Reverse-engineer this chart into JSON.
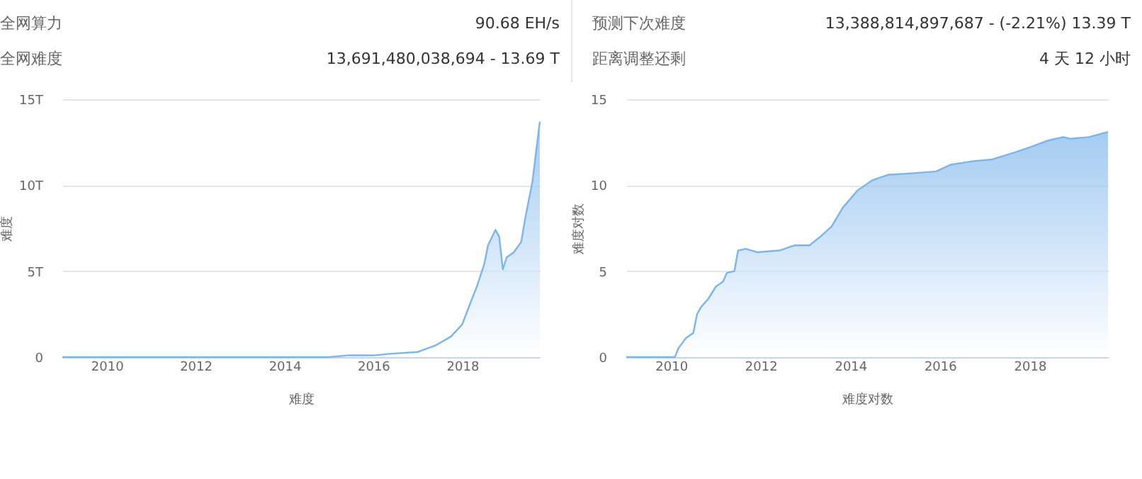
{
  "chart_data": [
    {
      "type": "area",
      "xlabel": "难度",
      "ylabel": "难度",
      "annotations": [
        "全网算力",
        "90.68 EH/s",
        "全网难度",
        "13,691,480,038,694 - 13.69 T"
      ],
      "x": [
        "2009-01",
        "2010-01",
        "2011-01",
        "2012-01",
        "2013-01",
        "2014-01",
        "2015-01",
        "2015-06",
        "2016-01",
        "2016-06",
        "2017-01",
        "2017-06",
        "2017-10",
        "2018-01",
        "2018-03",
        "2018-05",
        "2018-07",
        "2018-08",
        "2018-10",
        "2018-11",
        "2018-12",
        "2019-01",
        "2019-03",
        "2019-05",
        "2019-06",
        "2019-07",
        "2019-08",
        "2019-09",
        "2019-10"
      ],
      "series": [
        {
          "color": "#7cb5ec",
          "values": [
            0,
            0,
            0,
            0,
            0,
            0,
            0,
            0.1,
            0.1,
            0.2,
            0.3,
            0.7,
            1.2,
            1.9,
            3.0,
            4.1,
            5.4,
            6.5,
            7.4,
            7.0,
            5.1,
            5.8,
            6.1,
            6.7,
            8.0,
            9.1,
            10.2,
            12.0,
            13.7
          ]
        }
      ],
      "xlim": [
        "2009-01",
        "2019-10"
      ],
      "xticks": [
        "2010",
        "2012",
        "2014",
        "2016",
        "2018"
      ],
      "ylim": [
        0,
        15
      ],
      "yticks": [
        0,
        {
          "value": 5,
          "label": "5T"
        },
        {
          "value": 10,
          "label": "10T"
        },
        {
          "value": 15,
          "label": "15T"
        }
      ],
      "grid": "y"
    },
    {
      "type": "area",
      "xlabel": "难度对数",
      "ylabel": "难度对数",
      "annotations": [
        "预测下次难度",
        "13,388,814,897,687 - (-2.21%) 13.39 T",
        "距离调整还剩",
        "4 天 12 小时"
      ],
      "x": [
        "2009-01",
        "2010-02",
        "2010-03",
        "2010-05",
        "2010-07",
        "2010-08",
        "2010-09",
        "2010-11",
        "2011-01",
        "2011-03",
        "2011-04",
        "2011-06",
        "2011-07",
        "2011-09",
        "2011-12",
        "2012-06",
        "2012-10",
        "2013-02",
        "2013-05",
        "2013-08",
        "2013-11",
        "2014-03",
        "2014-07",
        "2014-11",
        "2015-06",
        "2015-12",
        "2016-04",
        "2016-10",
        "2017-03",
        "2017-09",
        "2018-01",
        "2018-06",
        "2018-10",
        "2018-12",
        "2019-05",
        "2019-10"
      ],
      "series": [
        {
          "color": "#7cb5ec",
          "values": [
            0,
            0,
            0.5,
            1.1,
            1.4,
            2.5,
            2.9,
            3.4,
            4.1,
            4.4,
            4.9,
            5.0,
            6.2,
            6.3,
            6.1,
            6.2,
            6.5,
            6.5,
            7.0,
            7.6,
            8.7,
            9.7,
            10.3,
            10.6,
            10.7,
            10.8,
            11.2,
            11.4,
            11.5,
            11.9,
            12.2,
            12.6,
            12.8,
            12.7,
            12.8,
            13.1
          ]
        }
      ],
      "xlim": [
        "2009-01",
        "2019-10"
      ],
      "xticks": [
        "2010",
        "2012",
        "2014",
        "2016",
        "2018"
      ],
      "ylim": [
        0,
        15
      ],
      "yticks": [
        0,
        5,
        10,
        15
      ],
      "grid": "y"
    }
  ]
}
